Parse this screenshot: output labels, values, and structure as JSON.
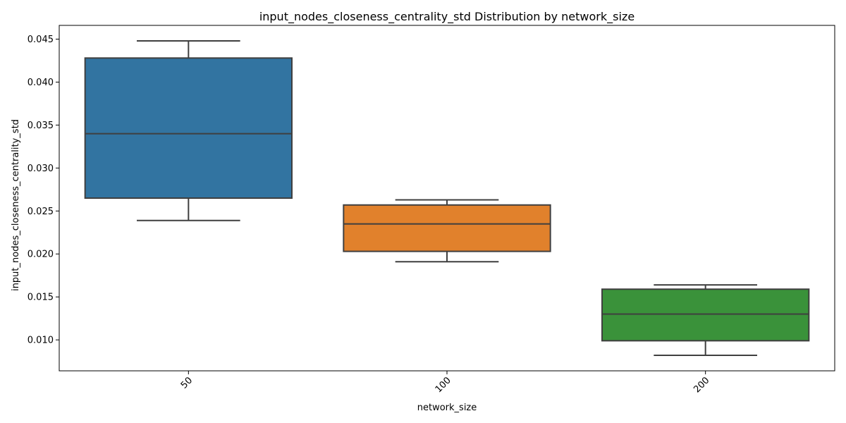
{
  "chart_data": {
    "type": "box",
    "title": "input_nodes_closeness_centrality_std Distribution by network_size",
    "xlabel": "network_size",
    "ylabel": "input_nodes_closeness_centrality_std",
    "ylim": [
      0.0064,
      0.0466
    ],
    "yticks": [
      0.01,
      0.015,
      0.02,
      0.025,
      0.03,
      0.035,
      0.04,
      0.045
    ],
    "ytick_labels": [
      "0.010",
      "0.015",
      "0.020",
      "0.025",
      "0.030",
      "0.035",
      "0.040",
      "0.045"
    ],
    "grid": false,
    "legend": "none",
    "categories": [
      "50",
      "100",
      "200"
    ],
    "boxes": [
      {
        "category": "50",
        "whisker_low": 0.0239,
        "q1": 0.0265,
        "median": 0.034,
        "q3": 0.0428,
        "whisker_high": 0.0448,
        "color": "#3274a1"
      },
      {
        "category": "100",
        "whisker_low": 0.0191,
        "q1": 0.0203,
        "median": 0.0235,
        "q3": 0.0257,
        "whisker_high": 0.0263,
        "color": "#e1812c"
      },
      {
        "category": "200",
        "whisker_low": 0.0082,
        "q1": 0.0099,
        "median": 0.013,
        "q3": 0.0159,
        "whisker_high": 0.0164,
        "color": "#3a923a"
      }
    ]
  }
}
